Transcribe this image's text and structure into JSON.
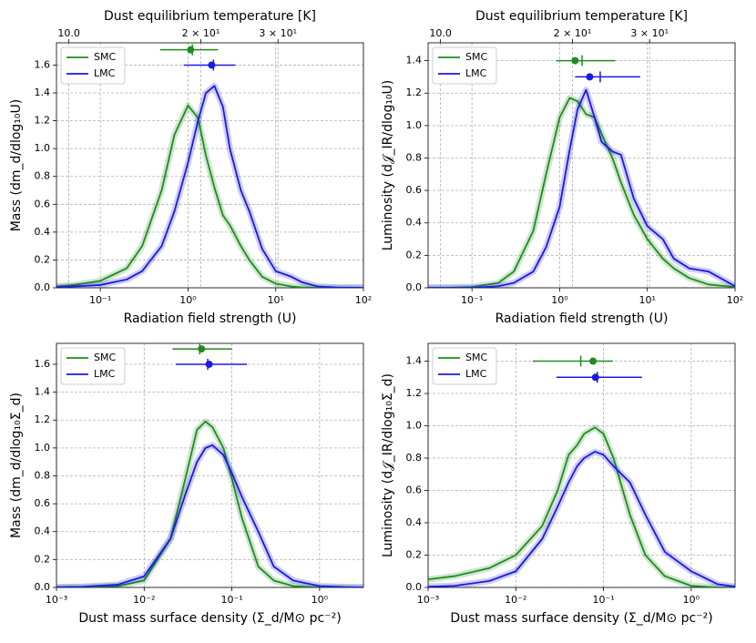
{
  "chart_data": [
    {
      "type": "line",
      "xlabel": "Radiation field strength (U)",
      "ylabel": "Mass (dm_d/dlog₁₀U)",
      "x2label": "Dust equilibrium temperature [K]",
      "xscale": "log",
      "x2scale": "log",
      "grid": true,
      "legend": "upper left",
      "x": [
        0.0316,
        0.05,
        0.1,
        0.2,
        0.3,
        0.5,
        0.7,
        1.0,
        1.3,
        1.6,
        2,
        2.5,
        3,
        4,
        5,
        7,
        10,
        15,
        20,
        30,
        50,
        100
      ],
      "series": [
        {
          "name": "SMC",
          "color": "#1f8c1f",
          "values": [
            0.01,
            0.02,
            0.05,
            0.14,
            0.3,
            0.7,
            1.1,
            1.31,
            1.22,
            0.95,
            0.72,
            0.52,
            0.45,
            0.3,
            0.2,
            0.08,
            0.03,
            0.01,
            0.003,
            0,
            0,
            0
          ],
          "marker": {
            "x": 1.07,
            "xlow": 0.48,
            "xhigh": 2.2,
            "xmark": 1.12,
            "y": 1.71
          }
        },
        {
          "name": "LMC",
          "color": "#1a1ae0",
          "values": [
            0.005,
            0.01,
            0.02,
            0.06,
            0.12,
            0.3,
            0.55,
            0.9,
            1.2,
            1.4,
            1.45,
            1.3,
            1.0,
            0.7,
            0.55,
            0.28,
            0.12,
            0.08,
            0.04,
            0.01,
            0.002,
            0
          ],
          "marker": {
            "x": 1.86,
            "xlow": 0.89,
            "xhigh": 3.46,
            "xmark": 1.95,
            "y": 1.6
          }
        }
      ],
      "xlim": [
        0.0316,
        100
      ],
      "xticks": [
        {
          "value": 0.1,
          "label": "10⁻¹"
        },
        {
          "value": 1,
          "label": "10⁰"
        },
        {
          "value": 10,
          "label": "10¹"
        },
        {
          "value": 100,
          "label": "10²"
        }
      ],
      "x2lim": [
        9.37,
        47.0
      ],
      "x2ticks": [
        {
          "value": 10,
          "label": "10.0"
        },
        {
          "value": 20,
          "label": "2 × 10¹"
        },
        {
          "value": 30,
          "label": "3 × 10¹"
        }
      ],
      "ylim": [
        0,
        1.76
      ],
      "yticks": [
        {
          "value": 0,
          "label": "0.0"
        },
        0.2,
        0.4,
        0.6,
        0.8,
        {
          "value": 1,
          "label": "1.0"
        },
        1.2,
        1.4,
        1.6
      ]
    },
    {
      "type": "line",
      "xlabel": "Radiation field strength (U)",
      "ylabel": "Luminosity (d𝒥_IR/dlog₁₀U)",
      "x2label": "Dust equilibrium temperature [K]",
      "xscale": "log",
      "x2scale": "log",
      "grid": true,
      "legend": "upper left",
      "x": [
        0.0316,
        0.05,
        0.1,
        0.2,
        0.3,
        0.5,
        0.7,
        1.0,
        1.3,
        1.6,
        2,
        2.5,
        3,
        4,
        5,
        7,
        10,
        15,
        20,
        30,
        50,
        100
      ],
      "series": [
        {
          "name": "SMC",
          "color": "#1f8c1f",
          "values": [
            0,
            0,
            0.005,
            0.03,
            0.1,
            0.35,
            0.7,
            1.05,
            1.17,
            1.15,
            1.07,
            1.05,
            0.95,
            0.8,
            0.65,
            0.45,
            0.3,
            0.18,
            0.12,
            0.06,
            0.02,
            0.005
          ],
          "marker": {
            "x": 1.5,
            "xlow": 0.91,
            "xhigh": 4.3,
            "xmark": 1.8,
            "y": 1.4
          }
        },
        {
          "name": "LMC",
          "color": "#1a1ae0",
          "values": [
            0,
            0,
            0,
            0.01,
            0.03,
            0.1,
            0.25,
            0.5,
            0.85,
            1.1,
            1.22,
            1.05,
            0.9,
            0.84,
            0.82,
            0.55,
            0.38,
            0.3,
            0.18,
            0.12,
            0.1,
            0.01
          ],
          "marker": {
            "x": 2.2,
            "xlow": 1.5,
            "xhigh": 8.3,
            "xmark": 2.9,
            "y": 1.3
          }
        }
      ],
      "xlim": [
        0.0316,
        100
      ],
      "xticks": [
        {
          "value": 0.1,
          "label": "10⁻¹"
        },
        {
          "value": 1,
          "label": "10⁰"
        },
        {
          "value": 10,
          "label": "10¹"
        },
        {
          "value": 100,
          "label": "10²"
        }
      ],
      "x2lim": [
        9.37,
        47.0
      ],
      "x2ticks": [
        {
          "value": 10,
          "label": "10.0"
        },
        {
          "value": 20,
          "label": "2 × 10¹"
        },
        {
          "value": 30,
          "label": "3 × 10¹"
        }
      ],
      "ylim": [
        0,
        1.51
      ],
      "yticks": [
        {
          "value": 0,
          "label": "0.0"
        },
        0.2,
        0.4,
        0.6,
        0.8,
        {
          "value": 1,
          "label": "1.0"
        },
        1.2,
        1.4
      ]
    },
    {
      "type": "line",
      "xlabel": "Dust mass surface density (Σ_d/M⊙ pc⁻²)",
      "ylabel": "Mass (dm_d/dlog₁₀Σ_d)",
      "xscale": "log",
      "grid": true,
      "legend": "upper left",
      "x": [
        0.001,
        0.002,
        0.005,
        0.01,
        0.02,
        0.03,
        0.04,
        0.05,
        0.06,
        0.08,
        0.1,
        0.13,
        0.2,
        0.3,
        0.5,
        1,
        2,
        3.16
      ],
      "series": [
        {
          "name": "SMC",
          "color": "#1f8c1f",
          "values": [
            0,
            0.002,
            0.01,
            0.05,
            0.35,
            0.8,
            1.13,
            1.19,
            1.15,
            1.0,
            0.78,
            0.5,
            0.15,
            0.05,
            0.01,
            0,
            0,
            0
          ],
          "marker": {
            "x": 0.045,
            "xlow": 0.021,
            "xhigh": 0.1,
            "xmark": 0.043,
            "y": 1.71
          }
        },
        {
          "name": "LMC",
          "color": "#1a1ae0",
          "values": [
            0.002,
            0.005,
            0.02,
            0.08,
            0.35,
            0.68,
            0.9,
            1.0,
            1.02,
            0.95,
            0.82,
            0.65,
            0.4,
            0.15,
            0.05,
            0.01,
            0.002,
            0
          ],
          "marker": {
            "x": 0.055,
            "xlow": 0.023,
            "xhigh": 0.148,
            "xmark": 0.053,
            "y": 1.6
          }
        }
      ],
      "xlim": [
        0.001,
        3.16
      ],
      "xticks": [
        {
          "value": 0.001,
          "label": "10⁻³"
        },
        {
          "value": 0.01,
          "label": "10⁻²"
        },
        {
          "value": 0.1,
          "label": "10⁻¹"
        },
        {
          "value": 1,
          "label": "10⁰"
        }
      ],
      "ylim": [
        0,
        1.75
      ],
      "yticks": [
        {
          "value": 0,
          "label": "0.0"
        },
        0.2,
        0.4,
        0.6,
        0.8,
        {
          "value": 1,
          "label": "1.0"
        },
        1.2,
        1.4,
        1.6
      ]
    },
    {
      "type": "line",
      "xlabel": "Dust mass surface density (Σ_d/M⊙ pc⁻²)",
      "ylabel": "Luminosity (d𝒥_IR/dlog₁₀Σ_d)",
      "xscale": "log",
      "grid": true,
      "legend": "upper left",
      "x": [
        0.001,
        0.002,
        0.005,
        0.01,
        0.02,
        0.03,
        0.04,
        0.05,
        0.06,
        0.08,
        0.1,
        0.13,
        0.2,
        0.3,
        0.5,
        1,
        2,
        3.16
      ],
      "series": [
        {
          "name": "SMC",
          "color": "#1f8c1f",
          "values": [
            0.05,
            0.07,
            0.12,
            0.2,
            0.38,
            0.6,
            0.82,
            0.88,
            0.95,
            0.99,
            0.95,
            0.8,
            0.45,
            0.2,
            0.07,
            0.01,
            0,
            0
          ],
          "marker": {
            "x": 0.076,
            "xlow": 0.0156,
            "xhigh": 0.128,
            "xmark": 0.055,
            "y": 1.4
          }
        },
        {
          "name": "LMC",
          "color": "#1a1ae0",
          "values": [
            0.005,
            0.01,
            0.04,
            0.1,
            0.3,
            0.5,
            0.65,
            0.75,
            0.8,
            0.84,
            0.82,
            0.75,
            0.65,
            0.45,
            0.22,
            0.1,
            0.02,
            0.005
          ],
          "marker": {
            "x": 0.081,
            "xlow": 0.029,
            "xhigh": 0.275,
            "xmark": 0.085,
            "y": 1.3
          }
        }
      ],
      "xlim": [
        0.001,
        3.16
      ],
      "xticks": [
        {
          "value": 0.001,
          "label": "10⁻³"
        },
        {
          "value": 0.01,
          "label": "10⁻²"
        },
        {
          "value": 0.1,
          "label": "10⁻¹"
        },
        {
          "value": 1,
          "label": "10⁰"
        }
      ],
      "ylim": [
        0,
        1.51
      ],
      "yticks": [
        {
          "value": 0,
          "label": "0.0"
        },
        0.2,
        0.4,
        0.6,
        0.8,
        {
          "value": 1,
          "label": "1.0"
        },
        1.2,
        1.4
      ]
    }
  ]
}
